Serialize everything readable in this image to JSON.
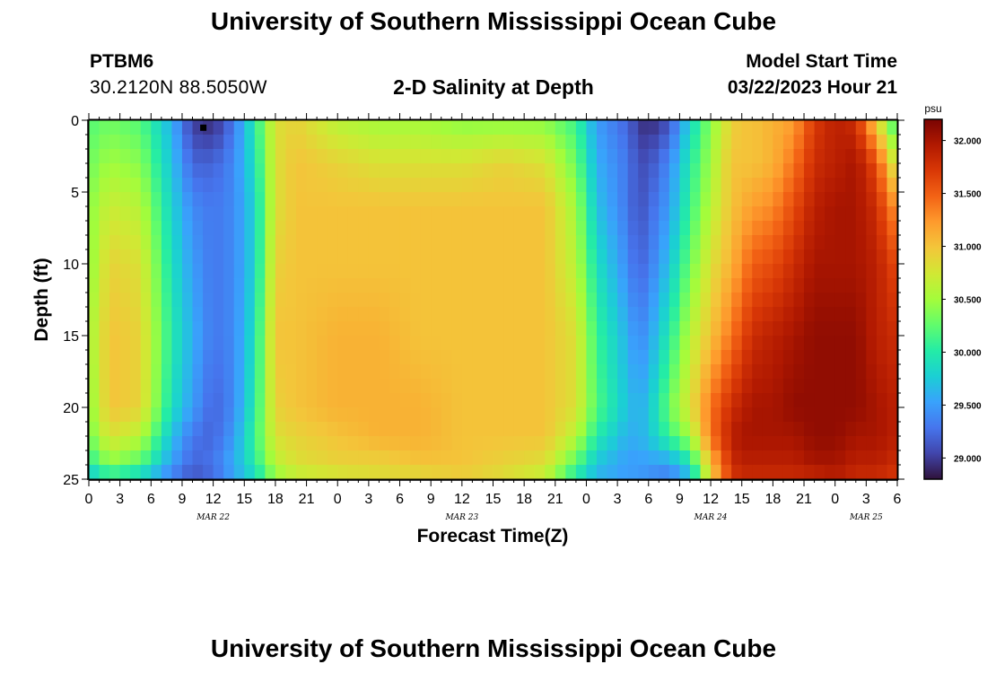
{
  "header": {
    "title": "University of Southern Mississippi Ocean Cube",
    "station": "PTBM6",
    "coordinates": "30.2120N  88.5050W",
    "subtitle": "2-D Salinity at Depth",
    "model_start_label": "Model Start Time",
    "model_start_value": "03/22/2023 Hour 21"
  },
  "footer": {
    "title": "University of Southern Mississippi Ocean Cube"
  },
  "colors": {
    "colormap": [
      "#30123b",
      "#4145ab",
      "#4675ed",
      "#39a2fc",
      "#1bcfd4",
      "#24eca6",
      "#61fc6c",
      "#a4fc3b",
      "#d1e834",
      "#f3c63a",
      "#fe9b2d",
      "#f36315",
      "#d93806",
      "#b11901",
      "#7a0402"
    ]
  },
  "chart_data": {
    "type": "heatmap",
    "xlabel": "Forecast Time(Z)",
    "ylabel": "Depth (ft)",
    "x_tick_labels": [
      "0",
      "3",
      "6",
      "9",
      "12",
      "15",
      "18",
      "21",
      "0",
      "3",
      "6",
      "9",
      "12",
      "15",
      "18",
      "21",
      "0",
      "3",
      "6",
      "9",
      "12",
      "15",
      "18",
      "21",
      "0",
      "3",
      "6"
    ],
    "date_labels": [
      {
        "label": "MAR 22",
        "hour": 12
      },
      {
        "label": "MAR 23",
        "hour": 36
      },
      {
        "label": "MAR 24",
        "hour": 60
      },
      {
        "label": "MAR 25",
        "hour": 75
      }
    ],
    "x_range_hours": [
      0,
      78
    ],
    "y_ticks": [
      0,
      5,
      10,
      15,
      20,
      25
    ],
    "y_range": [
      0,
      25
    ],
    "y_inverted": true,
    "colorbar": {
      "unit": "psu",
      "min": 28.8,
      "max": 32.2,
      "ticks": [
        "29.000",
        "29.500",
        "30.000",
        "30.500",
        "31.000",
        "31.500",
        "32.000"
      ]
    },
    "marker": {
      "hour": 11,
      "depth": 0.3
    },
    "profile_hours": [
      0,
      2,
      5,
      8,
      10,
      12,
      14,
      16,
      18,
      20,
      24,
      28,
      32,
      36,
      40,
      44,
      47,
      49,
      52,
      53,
      54,
      56,
      58,
      60,
      62,
      63,
      64,
      66,
      68,
      70,
      72,
      74,
      76,
      78
    ],
    "profile_depths": [
      0,
      3,
      6,
      10,
      15,
      20,
      22,
      24,
      25
    ],
    "salinity_psu": [
      [
        30.2,
        30.3,
        30.4,
        30.4,
        30.5,
        30.4,
        30.3,
        30.0,
        29.6
      ],
      [
        30.3,
        30.5,
        30.7,
        30.9,
        31.0,
        31.0,
        30.8,
        30.4,
        29.9
      ],
      [
        30.2,
        30.4,
        30.6,
        30.8,
        30.9,
        30.9,
        30.6,
        30.2,
        29.7
      ],
      [
        29.6,
        29.7,
        29.8,
        29.9,
        30.0,
        29.9,
        29.7,
        29.5,
        29.3
      ],
      [
        29.0,
        29.2,
        29.4,
        29.5,
        29.6,
        29.5,
        29.3,
        29.2,
        29.1
      ],
      [
        28.9,
        29.2,
        29.3,
        29.3,
        29.3,
        29.2,
        29.2,
        29.3,
        29.2
      ],
      [
        29.3,
        29.4,
        29.4,
        29.4,
        29.4,
        29.4,
        29.5,
        29.6,
        29.5
      ],
      [
        30.0,
        29.9,
        29.8,
        29.8,
        29.9,
        30.0,
        30.1,
        30.0,
        29.8
      ],
      [
        30.8,
        30.8,
        30.8,
        30.9,
        31.0,
        30.9,
        30.8,
        30.6,
        30.4
      ],
      [
        30.9,
        31.0,
        31.0,
        31.0,
        31.0,
        31.0,
        30.9,
        30.8,
        30.6
      ],
      [
        30.6,
        30.9,
        31.0,
        31.0,
        31.1,
        31.1,
        31.0,
        30.9,
        30.7
      ],
      [
        30.5,
        30.8,
        31.0,
        31.0,
        31.1,
        31.1,
        31.1,
        30.9,
        30.8
      ],
      [
        30.5,
        30.8,
        31.0,
        31.0,
        31.0,
        31.1,
        31.1,
        31.0,
        30.8
      ],
      [
        30.4,
        30.8,
        31.0,
        31.0,
        31.0,
        31.0,
        31.0,
        31.0,
        30.9
      ],
      [
        30.4,
        30.9,
        31.0,
        31.0,
        31.0,
        31.0,
        31.0,
        30.9,
        30.8
      ],
      [
        30.4,
        30.8,
        31.0,
        31.0,
        31.0,
        31.0,
        31.0,
        30.8,
        30.6
      ],
      [
        30.1,
        30.3,
        30.5,
        30.6,
        30.8,
        30.8,
        30.6,
        30.2,
        29.9
      ],
      [
        29.5,
        29.6,
        29.7,
        29.9,
        30.1,
        30.2,
        30.0,
        29.7,
        29.6
      ],
      [
        29.2,
        29.3,
        29.3,
        29.4,
        29.6,
        29.7,
        29.6,
        29.5,
        29.5
      ],
      [
        29.0,
        29.1,
        29.1,
        29.2,
        29.4,
        29.6,
        29.6,
        29.5,
        29.5
      ],
      [
        28.9,
        29.1,
        29.2,
        29.3,
        29.5,
        29.7,
        29.7,
        29.5,
        29.4
      ],
      [
        29.1,
        29.4,
        29.5,
        29.7,
        30.0,
        30.3,
        30.1,
        29.5,
        29.3
      ],
      [
        29.8,
        30.0,
        30.1,
        30.3,
        30.6,
        30.8,
        30.5,
        29.9,
        29.6
      ],
      [
        30.4,
        30.5,
        30.6,
        30.8,
        31.0,
        31.4,
        31.4,
        31.0,
        30.9
      ],
      [
        30.9,
        31.0,
        31.0,
        31.1,
        31.4,
        31.8,
        31.9,
        31.8,
        31.7
      ],
      [
        31.0,
        31.0,
        31.1,
        31.3,
        31.6,
        31.9,
        32.0,
        31.9,
        31.8
      ],
      [
        31.0,
        31.0,
        31.2,
        31.5,
        31.8,
        32.0,
        32.0,
        31.9,
        31.8
      ],
      [
        31.1,
        31.1,
        31.3,
        31.6,
        31.9,
        32.0,
        32.0,
        31.9,
        31.8
      ],
      [
        31.2,
        31.4,
        31.6,
        31.8,
        32.0,
        32.1,
        32.0,
        31.9,
        31.8
      ],
      [
        31.7,
        31.8,
        31.9,
        32.0,
        32.1,
        32.1,
        32.1,
        32.0,
        31.8
      ],
      [
        31.9,
        31.9,
        32.0,
        32.0,
        32.1,
        32.1,
        32.1,
        32.0,
        31.9
      ],
      [
        31.8,
        32.0,
        32.0,
        32.0,
        32.1,
        32.1,
        32.0,
        31.9,
        31.8
      ],
      [
        30.9,
        31.6,
        31.8,
        31.9,
        31.9,
        32.0,
        32.0,
        31.9,
        31.8
      ],
      [
        30.0,
        30.6,
        31.2,
        31.6,
        31.8,
        31.9,
        31.9,
        31.8,
        31.7
      ]
    ]
  }
}
